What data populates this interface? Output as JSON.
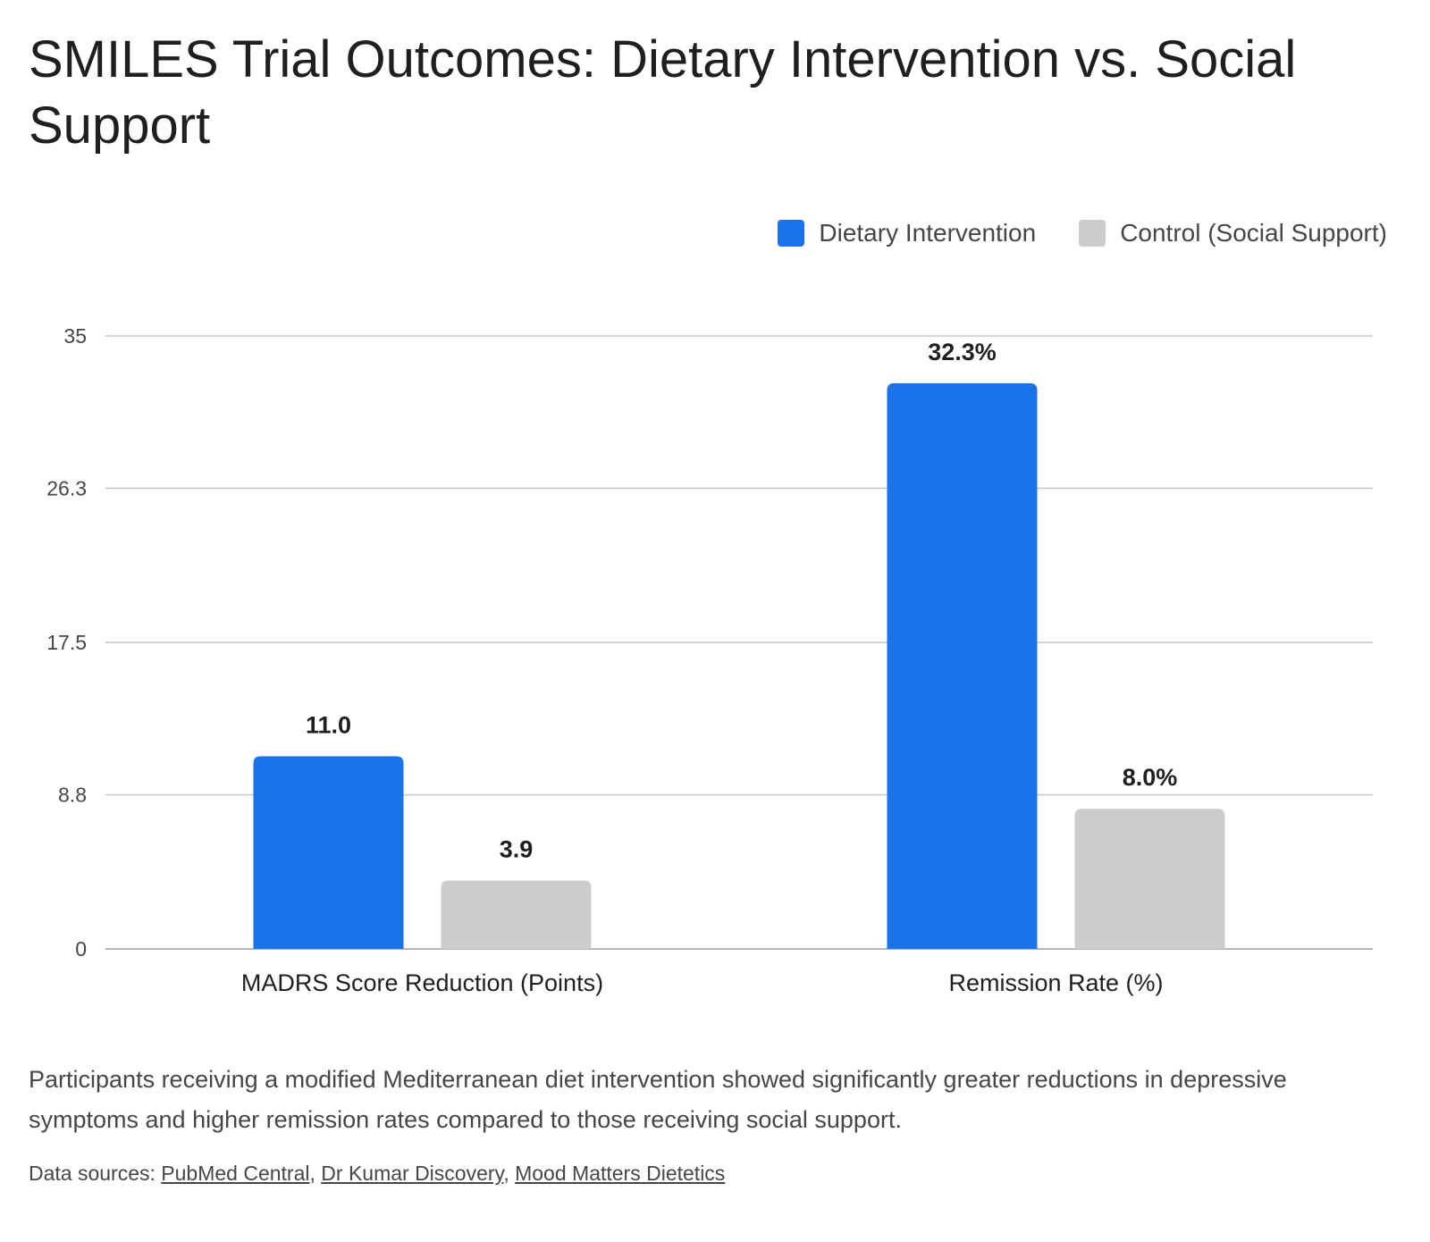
{
  "title": "SMILES Trial Outcomes: Dietary Intervention vs. Social Support",
  "caption": "Participants receiving a modified Mediterranean diet intervention showed significantly greater reductions in depressive symptoms and higher remission rates compared to those receiving social support.",
  "sources": {
    "prefix": "Data sources:",
    "links": [
      "PubMed Central",
      "Dr Kumar Discovery",
      "Mood Matters Dietetics"
    ]
  },
  "colors": {
    "dietary": "#1a73e8",
    "control": "#cccccc",
    "grid": "#c4c7c5"
  },
  "chart_data": {
    "type": "bar",
    "title": "SMILES Trial Outcomes: Dietary Intervention vs. Social Support",
    "categories": [
      "MADRS Score Reduction (Points)",
      "Remission Rate (%)"
    ],
    "series": [
      {
        "name": "Dietary Intervention",
        "values": [
          11.0,
          32.3
        ],
        "labels": [
          "11.0",
          "32.3%"
        ],
        "color": "#1a73e8"
      },
      {
        "name": "Control (Social Support)",
        "values": [
          3.9,
          8.0
        ],
        "labels": [
          "3.9",
          "8.0%"
        ],
        "color": "#cccccc"
      }
    ],
    "y_ticks": [
      "0",
      "8.8",
      "17.5",
      "26.3",
      "35"
    ],
    "ylim": [
      0,
      35
    ],
    "xlabel": "",
    "ylabel": "",
    "grid": true,
    "legend_position": "top-right"
  }
}
